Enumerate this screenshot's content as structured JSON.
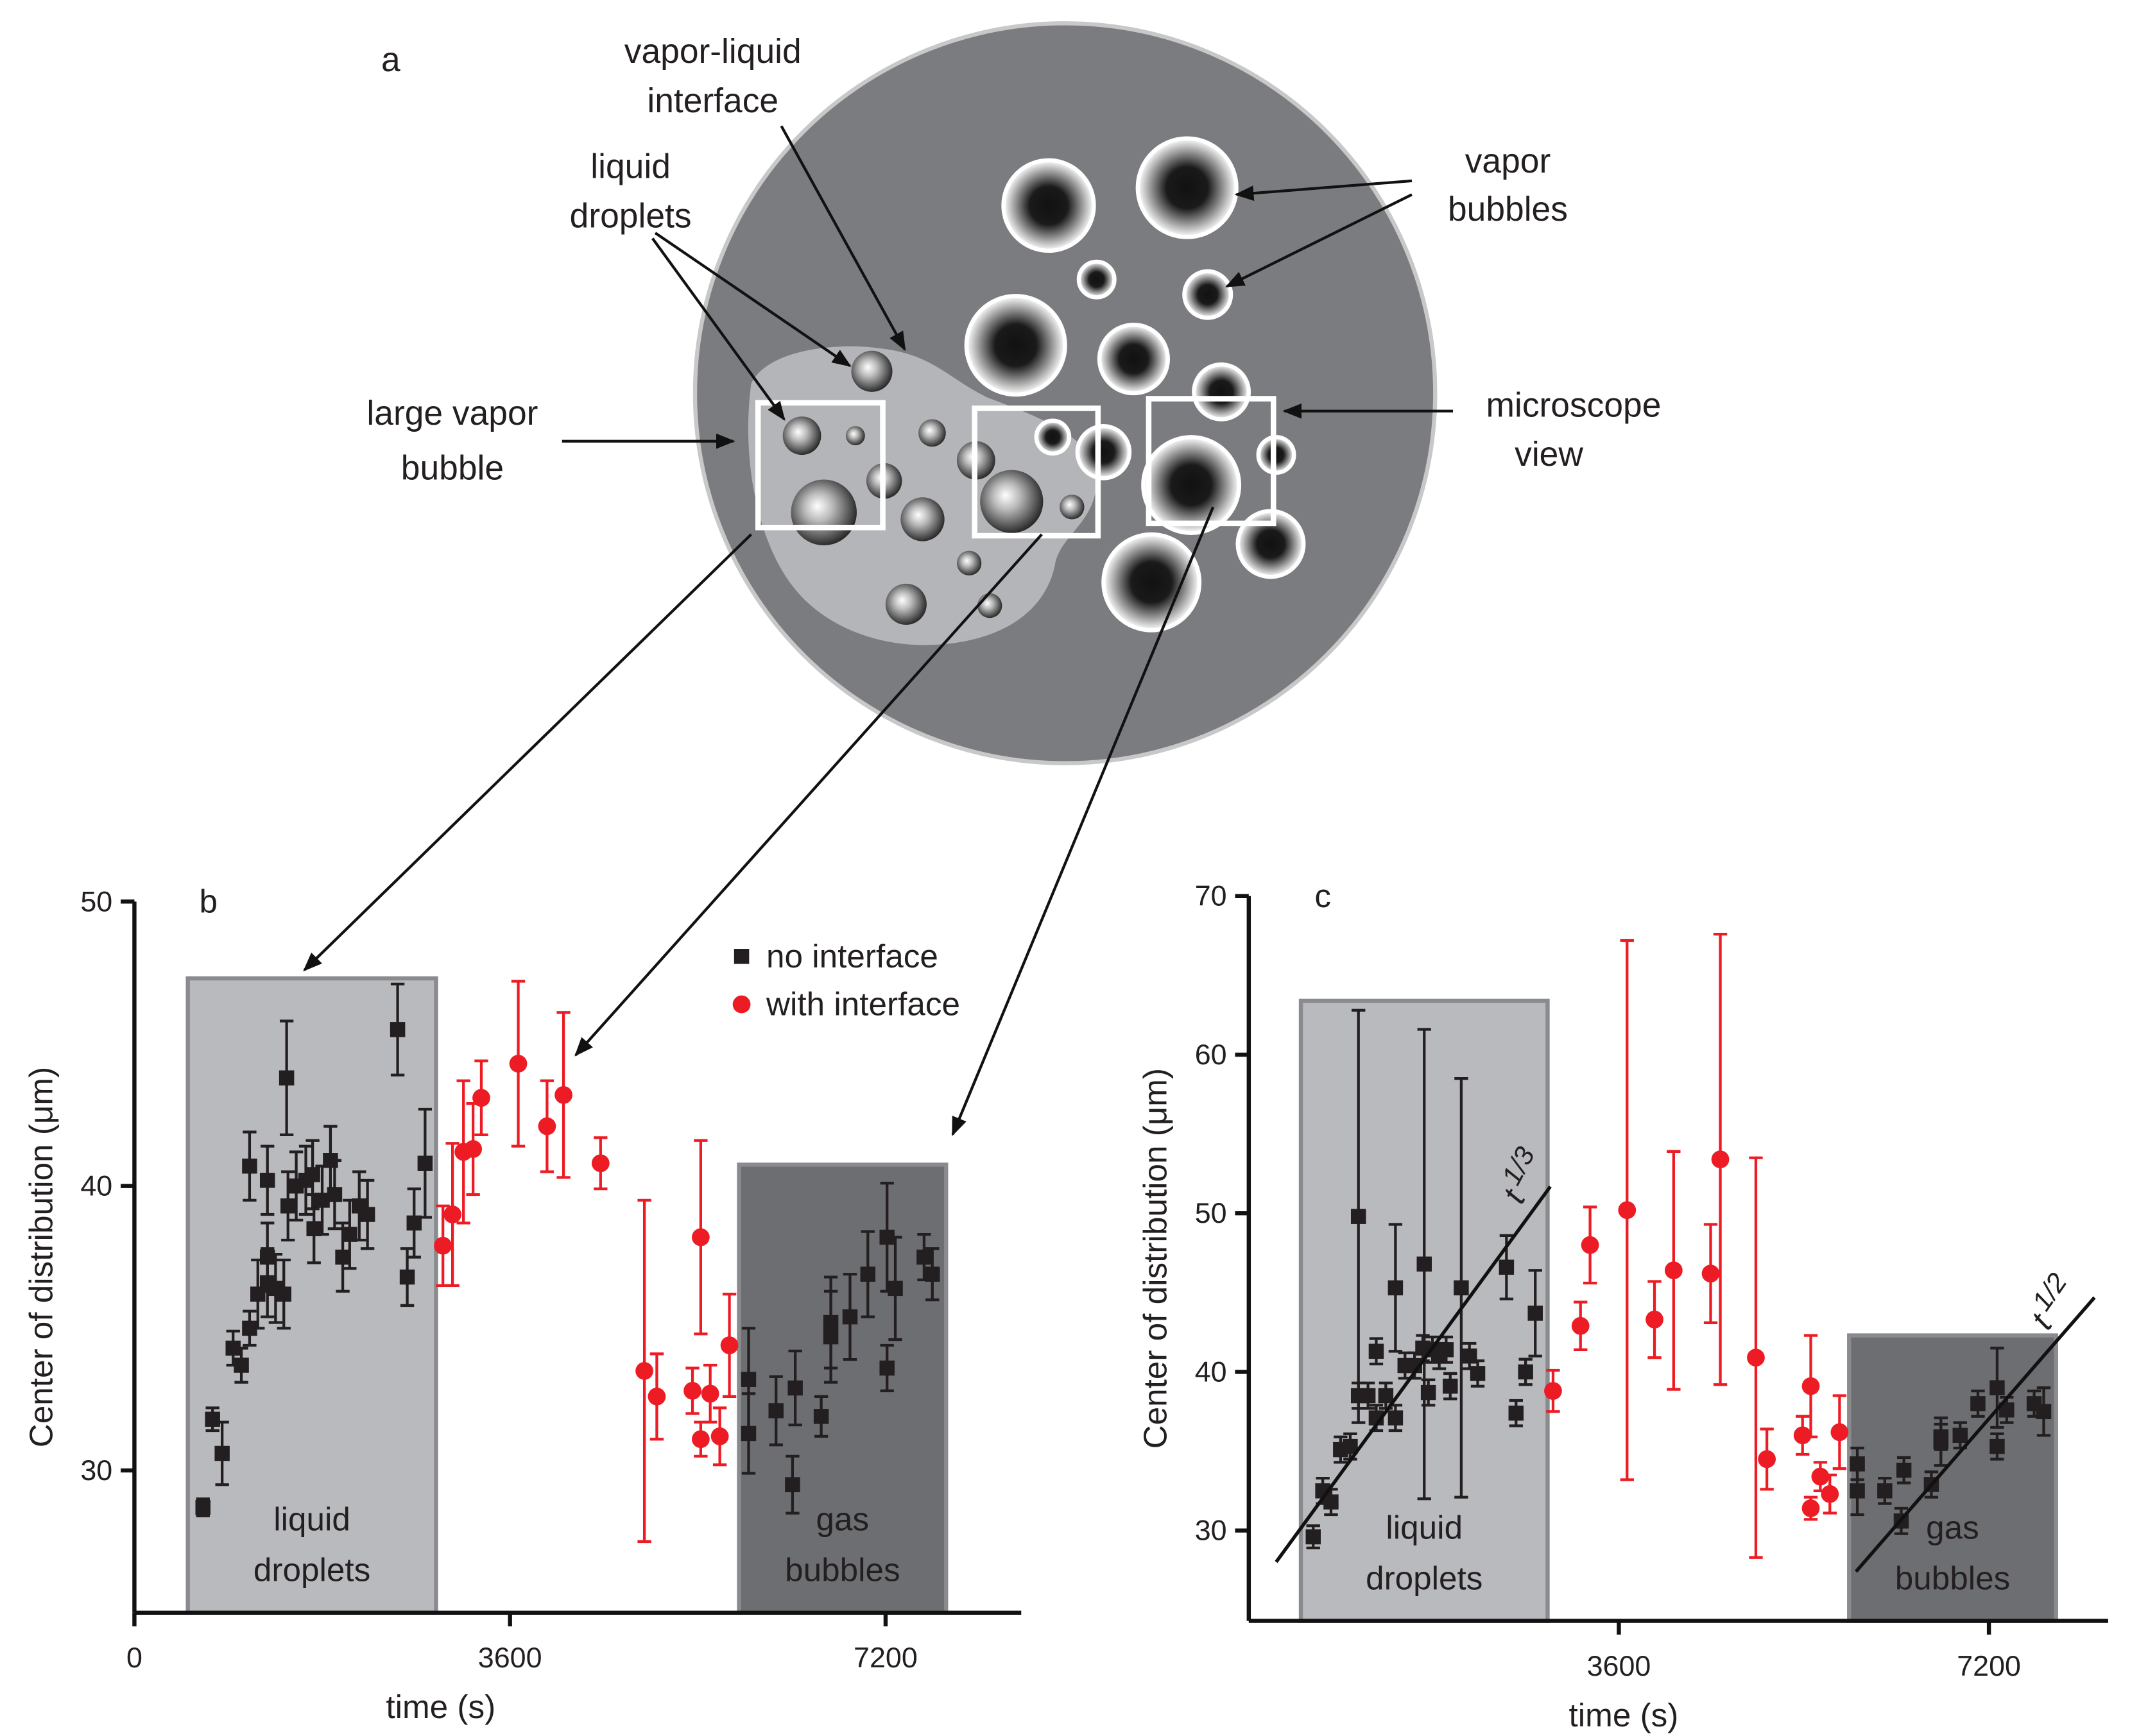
{
  "diagram": {
    "panel_label": "a",
    "labels": [
      {
        "lines": [
          "vapor-liquid",
          "interface"
        ]
      },
      {
        "lines": [
          "liquid",
          "droplets"
        ]
      },
      {
        "lines": [
          "vapor",
          "bubbles"
        ]
      },
      {
        "lines": [
          "large  vapor",
          "bubble"
        ]
      },
      {
        "lines": [
          "microscope",
          "view"
        ]
      }
    ]
  },
  "chart_data": [
    {
      "type": "scatter",
      "panel_label": "b",
      "x_label": "time (s)",
      "y_label": "Center of distribution (μm)",
      "xlim": [
        0,
        8500
      ],
      "ylim": [
        25,
        50
      ],
      "xticks": [
        0,
        3600,
        7200
      ],
      "yticks": [
        30,
        40,
        50
      ],
      "legend": "upper right",
      "regions": [
        {
          "lines": [
            "liquid",
            "droplets"
          ],
          "x": [
            512,
            2891
          ],
          "top": 47.3,
          "color": "#b9babd"
        },
        {
          "lines": [
            "gas",
            "bubbles"
          ],
          "x": [
            5795,
            7780
          ],
          "top": 40.75,
          "color": "#6d6e71"
        }
      ],
      "series": [
        {
          "name": "no interface",
          "color": "#231f20",
          "marker": "square",
          "x": [
            657,
            749,
            841,
            946,
            1025,
            1104,
            1104,
            1183,
            1275,
            1275,
            1275,
            1353,
            1432,
            1459,
            1472,
            1551,
            1643,
            1708,
            1721,
            1800,
            1879,
            1919,
            1997,
            2063,
            2155,
            2234,
            2523,
            2615,
            2681,
            2786,
            5887,
            5887,
            6150,
            6308,
            6334,
            6583,
            6675,
            6675,
            6859,
            7030,
            7214,
            7214,
            7293,
            7569,
            7648
          ],
          "values": [
            28.7,
            31.8,
            30.6,
            34.3,
            33.7,
            35.0,
            40.7,
            36.2,
            36.6,
            37.5,
            40.2,
            36.4,
            36.2,
            43.8,
            39.3,
            40.0,
            40.2,
            40.4,
            38.5,
            39.5,
            40.9,
            39.7,
            37.5,
            38.3,
            39.3,
            39.0,
            45.5,
            36.8,
            38.7,
            40.8,
            33.2,
            31.3,
            32.1,
            29.5,
            32.9,
            31.9,
            34.7,
            35.2,
            35.4,
            36.9,
            33.6,
            38.2,
            36.4,
            37.5,
            36.9
          ],
          "errors": [
            0.3,
            0.4,
            1.1,
            0.6,
            0.6,
            0.6,
            1.2,
            1.2,
            1.2,
            1.2,
            1.2,
            1.2,
            1.2,
            2.0,
            1.2,
            1.2,
            1.2,
            1.2,
            1.2,
            1.2,
            1.2,
            1.2,
            1.2,
            1.2,
            1.2,
            1.2,
            1.6,
            1.0,
            1.2,
            1.9,
            1.8,
            1.4,
            1.2,
            1.0,
            1.3,
            0.7,
            1.6,
            1.6,
            1.5,
            1.5,
            0.8,
            1.9,
            1.8,
            0.8,
            0.9
          ]
        },
        {
          "name": "with interface",
          "color": "#ed1c24",
          "marker": "circle",
          "x": [
            2957,
            3049,
            3154,
            3246,
            3325,
            3679,
            3955,
            4113,
            4468,
            4888,
            5007,
            5349,
            5428,
            5428,
            5519,
            5611,
            5703
          ],
          "values": [
            37.9,
            39.0,
            41.2,
            41.3,
            43.1,
            44.3,
            42.1,
            43.2,
            40.8,
            33.5,
            32.6,
            32.8,
            38.2,
            31.1,
            32.7,
            31.2,
            34.4
          ],
          "errors": [
            1.4,
            2.5,
            2.5,
            1.6,
            1.3,
            2.9,
            1.6,
            2.9,
            0.9,
            6.0,
            1.5,
            0.8,
            3.4,
            0.6,
            1.0,
            1.0,
            1.8
          ]
        }
      ]
    },
    {
      "type": "scatter",
      "panel_label": "c",
      "x_label": "time (s)",
      "y_label": "Center of distribution (μm)",
      "xlim": [
        0,
        8360
      ],
      "ylim": [
        24.3,
        70
      ],
      "xticks": [
        3600,
        7200
      ],
      "yticks": [
        30,
        40,
        50,
        60,
        70
      ],
      "annotations": [
        {
          "text": "t",
          "exponent": "1/3"
        },
        {
          "text": "t",
          "exponent": "1/2"
        }
      ],
      "regions": [
        {
          "lines": [
            "liquid",
            "droplets"
          ],
          "x": [
            507,
            2907
          ],
          "top": 63.4,
          "color": "#b9babd"
        },
        {
          "lines": [
            "gas",
            "bubbles"
          ],
          "x": [
            5840,
            7853
          ],
          "top": 42.3,
          "color": "#6d6e71"
        }
      ],
      "series": [
        {
          "name": "no interface",
          "color": "#231f20",
          "marker": "square",
          "x": [
            627,
            720,
            800,
            893,
            987,
            1067,
            1067,
            1160,
            1240,
            1240,
            1333,
            1427,
            1427,
            1520,
            1613,
            1693,
            1747,
            1787,
            1707,
            1853,
            1920,
            1960,
            2067,
            2147,
            2227,
            2507,
            2600,
            2693,
            2787,
            5920,
            5920,
            6187,
            6373,
            6347,
            6640,
            6733,
            6733,
            6920,
            7093,
            7280,
            7280,
            7373,
            7640,
            7733
          ],
          "values": [
            29.6,
            32.5,
            31.8,
            35.1,
            35.3,
            49.8,
            38.5,
            38.5,
            41.3,
            37.1,
            38.5,
            37.1,
            45.3,
            40.4,
            40.4,
            41.5,
            38.7,
            41.4,
            46.8,
            41.0,
            41.4,
            39.1,
            45.3,
            41.0,
            39.9,
            46.6,
            37.4,
            40.0,
            43.7,
            34.2,
            32.5,
            32.5,
            33.8,
            30.6,
            32.9,
            35.6,
            35.9,
            36.0,
            38.0,
            35.3,
            39.0,
            37.6,
            38.0,
            37.5
          ],
          "errors": [
            0.7,
            0.8,
            0.8,
            0.8,
            0.8,
            13.0,
            0.8,
            0.8,
            0.8,
            0.8,
            0.8,
            0.8,
            4.0,
            0.8,
            0.8,
            0.8,
            0.8,
            0.8,
            14.8,
            0.8,
            0.8,
            0.8,
            13.2,
            0.8,
            0.8,
            2.0,
            0.8,
            0.8,
            2.7,
            1.0,
            1.5,
            0.8,
            0.8,
            0.8,
            0.8,
            1.5,
            0.8,
            0.8,
            0.8,
            0.8,
            2.5,
            0.8,
            0.8,
            1.5
          ]
        },
        {
          "name": "with interface",
          "color": "#ed1c24",
          "marker": "circle",
          "x": [
            2960,
            3227,
            3320,
            3680,
            3947,
            4133,
            4493,
            4587,
            4933,
            5040,
            5387,
            5467,
            5467,
            5560,
            5653,
            5747
          ],
          "values": [
            38.8,
            42.9,
            48.0,
            50.2,
            43.3,
            46.4,
            46.2,
            53.4,
            40.9,
            34.5,
            36.0,
            39.1,
            31.4,
            33.4,
            32.3,
            36.2
          ],
          "errors": [
            1.3,
            1.5,
            2.4,
            17.0,
            2.4,
            7.5,
            3.1,
            14.2,
            12.6,
            1.9,
            1.2,
            3.2,
            0.7,
            0.9,
            1.2,
            2.3
          ]
        }
      ]
    }
  ]
}
